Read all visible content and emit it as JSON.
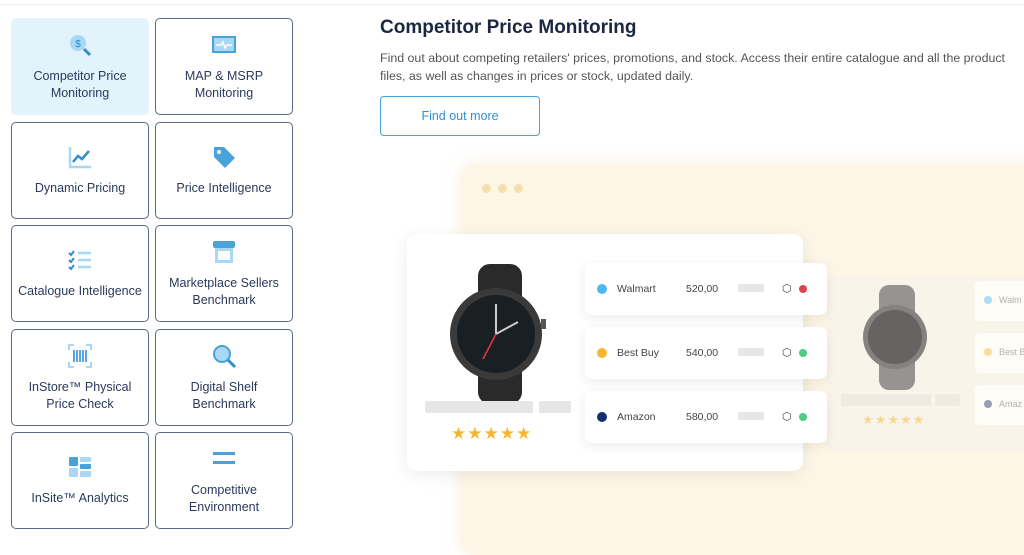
{
  "tiles": [
    {
      "label": "Competitor Price Monitoring",
      "icon": "dollar-search-icon",
      "active": true
    },
    {
      "label": "MAP & MSRP Monitoring",
      "icon": "monitor-pulse-icon"
    },
    {
      "label": "Dynamic Pricing",
      "icon": "line-chart-icon"
    },
    {
      "label": "Price Intelligence",
      "icon": "price-tag-icon"
    },
    {
      "label": "Catalogue Intelligence",
      "icon": "checklist-icon"
    },
    {
      "label": "Marketplace Sellers Benchmark",
      "icon": "storefront-icon"
    },
    {
      "label": "InStore™ Physical Price Check",
      "icon": "barcode-scan-icon"
    },
    {
      "label": "Digital Shelf Benchmark",
      "icon": "magnifier-icon"
    },
    {
      "label": "InSite™ Analytics",
      "icon": "dashboard-icon"
    },
    {
      "label": "Competitive Environment",
      "icon": "menu-lines-icon"
    }
  ],
  "main": {
    "title": "Competitor Price Monitoring",
    "description": "Find out about competing retailers' prices, promotions, and stock. Access their entire catalogue and all the product files, as well as changes in prices or stock, updated daily.",
    "button": "Find out more"
  },
  "mockup": {
    "rating_stars": 5,
    "retailers": [
      {
        "name": "Walmart",
        "price": "520,00",
        "color": "#4db8f5",
        "status": "out-of-stock",
        "status_color": "#e0424b"
      },
      {
        "name": "Best Buy",
        "price": "540,00",
        "color": "#f5b731",
        "status": "in-stock",
        "status_color": "#4ccb82"
      },
      {
        "name": "Amazon",
        "price": "580,00",
        "color": "#13306b",
        "status": "in-stock",
        "status_color": "#4ccb82"
      }
    ],
    "faded_retailers": [
      "Walm",
      "Best B",
      "Amaz"
    ]
  }
}
